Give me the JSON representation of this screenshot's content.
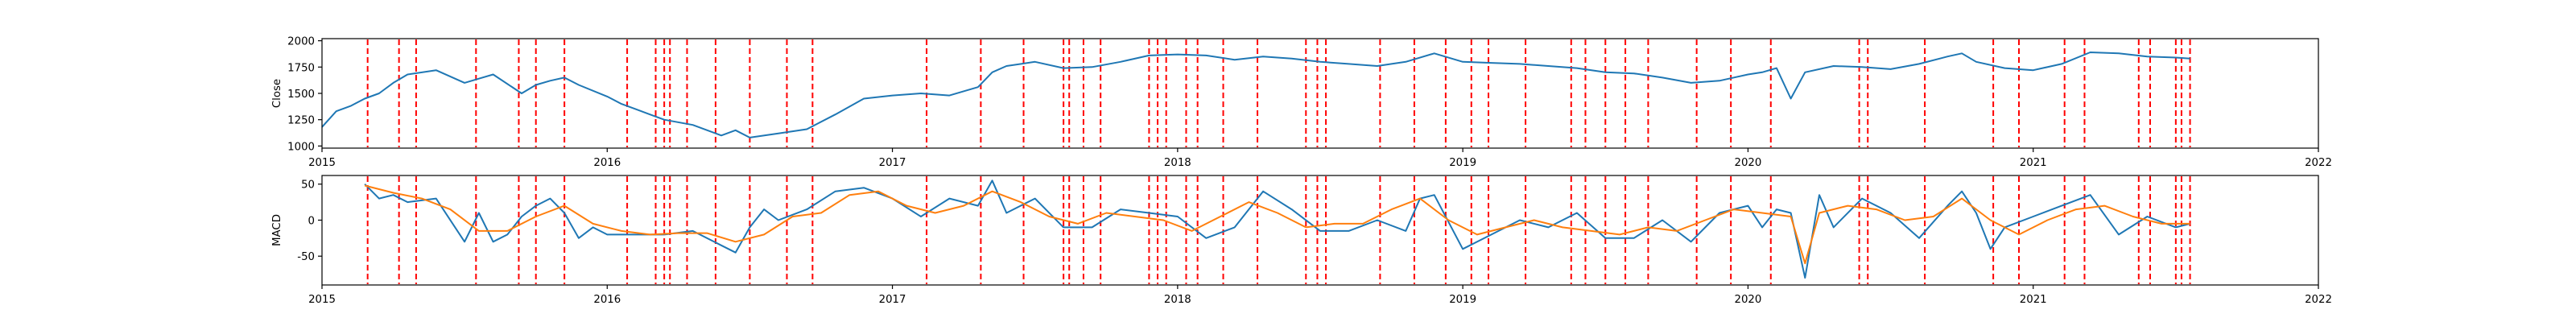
{
  "colors": {
    "close": "#1f77b4",
    "macd": "#1f77b4",
    "signal": "#ff7f0e",
    "marker": "#ff0000"
  },
  "chart_data": [
    {
      "type": "line",
      "ylabel": "Close",
      "xlabel": "",
      "xlim": [
        2015,
        2022
      ],
      "ylim": [
        980,
        2020
      ],
      "xticks": [
        "2015",
        "2016",
        "2017",
        "2018",
        "2019",
        "2020",
        "2021",
        "2022"
      ],
      "yticks": [
        1000,
        1250,
        1500,
        1750,
        2000
      ],
      "grid": false,
      "series": [
        {
          "x": [
            2015.0,
            2015.05,
            2015.1,
            2015.15,
            2015.2,
            2015.25,
            2015.3,
            2015.4,
            2015.5,
            2015.55,
            2015.6,
            2015.7,
            2015.75,
            2015.8,
            2015.85,
            2015.9,
            2016.0,
            2016.05,
            2016.1,
            2016.15,
            2016.2,
            2016.3,
            2016.4,
            2016.45,
            2016.5,
            2016.6,
            2016.7,
            2016.8,
            2016.9,
            2017.0,
            2017.1,
            2017.2,
            2017.3,
            2017.35,
            2017.4,
            2017.5,
            2017.6,
            2017.7,
            2017.8,
            2017.9,
            2018.0,
            2018.1,
            2018.2,
            2018.3,
            2018.4,
            2018.5,
            2018.6,
            2018.7,
            2018.8,
            2018.9,
            2019.0,
            2019.1,
            2019.2,
            2019.3,
            2019.4,
            2019.5,
            2019.6,
            2019.7,
            2019.8,
            2019.9,
            2020.0,
            2020.05,
            2020.1,
            2020.15,
            2020.2,
            2020.3,
            2020.4,
            2020.5,
            2020.6,
            2020.7,
            2020.75,
            2020.8,
            2020.9,
            2021.0,
            2021.1,
            2021.2,
            2021.3,
            2021.4,
            2021.5,
            2021.55
          ],
          "values": [
            1180,
            1330,
            1380,
            1450,
            1500,
            1600,
            1680,
            1720,
            1600,
            1640,
            1680,
            1500,
            1580,
            1620,
            1650,
            1580,
            1470,
            1400,
            1350,
            1300,
            1250,
            1200,
            1100,
            1150,
            1080,
            1120,
            1160,
            1300,
            1450,
            1480,
            1500,
            1480,
            1560,
            1700,
            1760,
            1800,
            1740,
            1750,
            1800,
            1860,
            1870,
            1860,
            1820,
            1850,
            1830,
            1800,
            1780,
            1760,
            1800,
            1880,
            1800,
            1790,
            1780,
            1760,
            1740,
            1700,
            1690,
            1650,
            1600,
            1620,
            1680,
            1700,
            1740,
            1450,
            1700,
            1760,
            1750,
            1730,
            1780,
            1850,
            1880,
            1800,
            1740,
            1720,
            1780,
            1890,
            1880,
            1850,
            1840,
            1830
          ]
        }
      ]
    },
    {
      "type": "line",
      "ylabel": "MACD",
      "xlabel": "",
      "xlim": [
        2015,
        2022
      ],
      "ylim": [
        -90,
        62
      ],
      "xticks": [
        "2015",
        "2016",
        "2017",
        "2018",
        "2019",
        "2020",
        "2021",
        "2022"
      ],
      "yticks": [
        -50,
        0,
        50
      ],
      "grid": false,
      "series": [
        {
          "name": "",
          "x": [
            2015.15,
            2015.2,
            2015.25,
            2015.3,
            2015.4,
            2015.5,
            2015.55,
            2015.6,
            2015.65,
            2015.7,
            2015.75,
            2015.8,
            2015.85,
            2015.9,
            2015.95,
            2016.0,
            2016.1,
            2016.2,
            2016.3,
            2016.4,
            2016.45,
            2016.5,
            2016.55,
            2016.6,
            2016.7,
            2016.8,
            2016.9,
            2017.0,
            2017.1,
            2017.2,
            2017.3,
            2017.35,
            2017.4,
            2017.5,
            2017.6,
            2017.7,
            2017.8,
            2017.9,
            2018.0,
            2018.1,
            2018.2,
            2018.3,
            2018.4,
            2018.5,
            2018.6,
            2018.7,
            2018.8,
            2018.85,
            2018.9,
            2019.0,
            2019.1,
            2019.2,
            2019.3,
            2019.4,
            2019.5,
            2019.6,
            2019.7,
            2019.8,
            2019.9,
            2020.0,
            2020.05,
            2020.1,
            2020.15,
            2020.2,
            2020.25,
            2020.3,
            2020.4,
            2020.5,
            2020.6,
            2020.7,
            2020.75,
            2020.8,
            2020.85,
            2020.9,
            2021.0,
            2021.1,
            2021.2,
            2021.3,
            2021.4,
            2021.5,
            2021.55
          ],
          "values": [
            50,
            30,
            35,
            25,
            30,
            -30,
            10,
            -30,
            -20,
            5,
            20,
            30,
            10,
            -25,
            -10,
            -20,
            -20,
            -20,
            -15,
            -35,
            -45,
            -10,
            15,
            0,
            15,
            40,
            45,
            30,
            5,
            30,
            20,
            55,
            10,
            30,
            -10,
            -10,
            15,
            10,
            5,
            -25,
            -10,
            40,
            15,
            -15,
            -15,
            0,
            -15,
            30,
            35,
            -40,
            -20,
            0,
            -10,
            10,
            -25,
            -25,
            0,
            -30,
            10,
            20,
            -10,
            15,
            10,
            -80,
            35,
            -10,
            30,
            10,
            -25,
            20,
            40,
            10,
            -40,
            -10,
            5,
            20,
            35,
            -20,
            5,
            -10,
            -5
          ]
        },
        {
          "name": "",
          "x": [
            2015.15,
            2015.25,
            2015.35,
            2015.45,
            2015.55,
            2015.65,
            2015.75,
            2015.85,
            2015.95,
            2016.05,
            2016.15,
            2016.25,
            2016.35,
            2016.45,
            2016.55,
            2016.65,
            2016.75,
            2016.85,
            2016.95,
            2017.05,
            2017.15,
            2017.25,
            2017.35,
            2017.45,
            2017.55,
            2017.65,
            2017.75,
            2017.85,
            2017.95,
            2018.05,
            2018.15,
            2018.25,
            2018.35,
            2018.45,
            2018.55,
            2018.65,
            2018.75,
            2018.85,
            2018.95,
            2019.05,
            2019.15,
            2019.25,
            2019.35,
            2019.45,
            2019.55,
            2019.65,
            2019.75,
            2019.85,
            2019.95,
            2020.05,
            2020.15,
            2020.2,
            2020.25,
            2020.35,
            2020.45,
            2020.55,
            2020.65,
            2020.75,
            2020.85,
            2020.95,
            2021.05,
            2021.15,
            2021.25,
            2021.35,
            2021.45,
            2021.55
          ],
          "values": [
            48,
            38,
            30,
            15,
            -15,
            -15,
            5,
            20,
            -5,
            -15,
            -20,
            -18,
            -18,
            -30,
            -20,
            5,
            10,
            35,
            40,
            20,
            10,
            20,
            40,
            25,
            5,
            -5,
            10,
            5,
            0,
            -15,
            5,
            25,
            10,
            -10,
            -5,
            -5,
            15,
            30,
            0,
            -20,
            -10,
            0,
            -10,
            -15,
            -20,
            -10,
            -15,
            0,
            15,
            10,
            5,
            -60,
            10,
            20,
            15,
            0,
            5,
            30,
            0,
            -20,
            0,
            15,
            20,
            5,
            -5,
            -5
          ]
        }
      ],
      "markers_x": [
        2015.16,
        2015.27,
        2015.33,
        2015.54,
        2015.69,
        2015.75,
        2015.85,
        2016.07,
        2016.17,
        2016.2,
        2016.22,
        2016.28,
        2016.38,
        2016.5,
        2016.63,
        2016.72,
        2017.12,
        2017.31,
        2017.46,
        2017.6,
        2017.62,
        2017.67,
        2017.73,
        2017.9,
        2017.93,
        2017.96,
        2018.03,
        2018.07,
        2018.16,
        2018.28,
        2018.45,
        2018.49,
        2018.52,
        2018.71,
        2018.83,
        2018.94,
        2019.03,
        2019.09,
        2019.22,
        2019.38,
        2019.43,
        2019.5,
        2019.57,
        2019.65,
        2019.82,
        2019.94,
        2020.08,
        2020.39,
        2020.42,
        2020.62,
        2020.86,
        2020.95,
        2021.11,
        2021.18,
        2021.37,
        2021.41,
        2021.5,
        2021.52,
        2021.55
      ]
    }
  ]
}
